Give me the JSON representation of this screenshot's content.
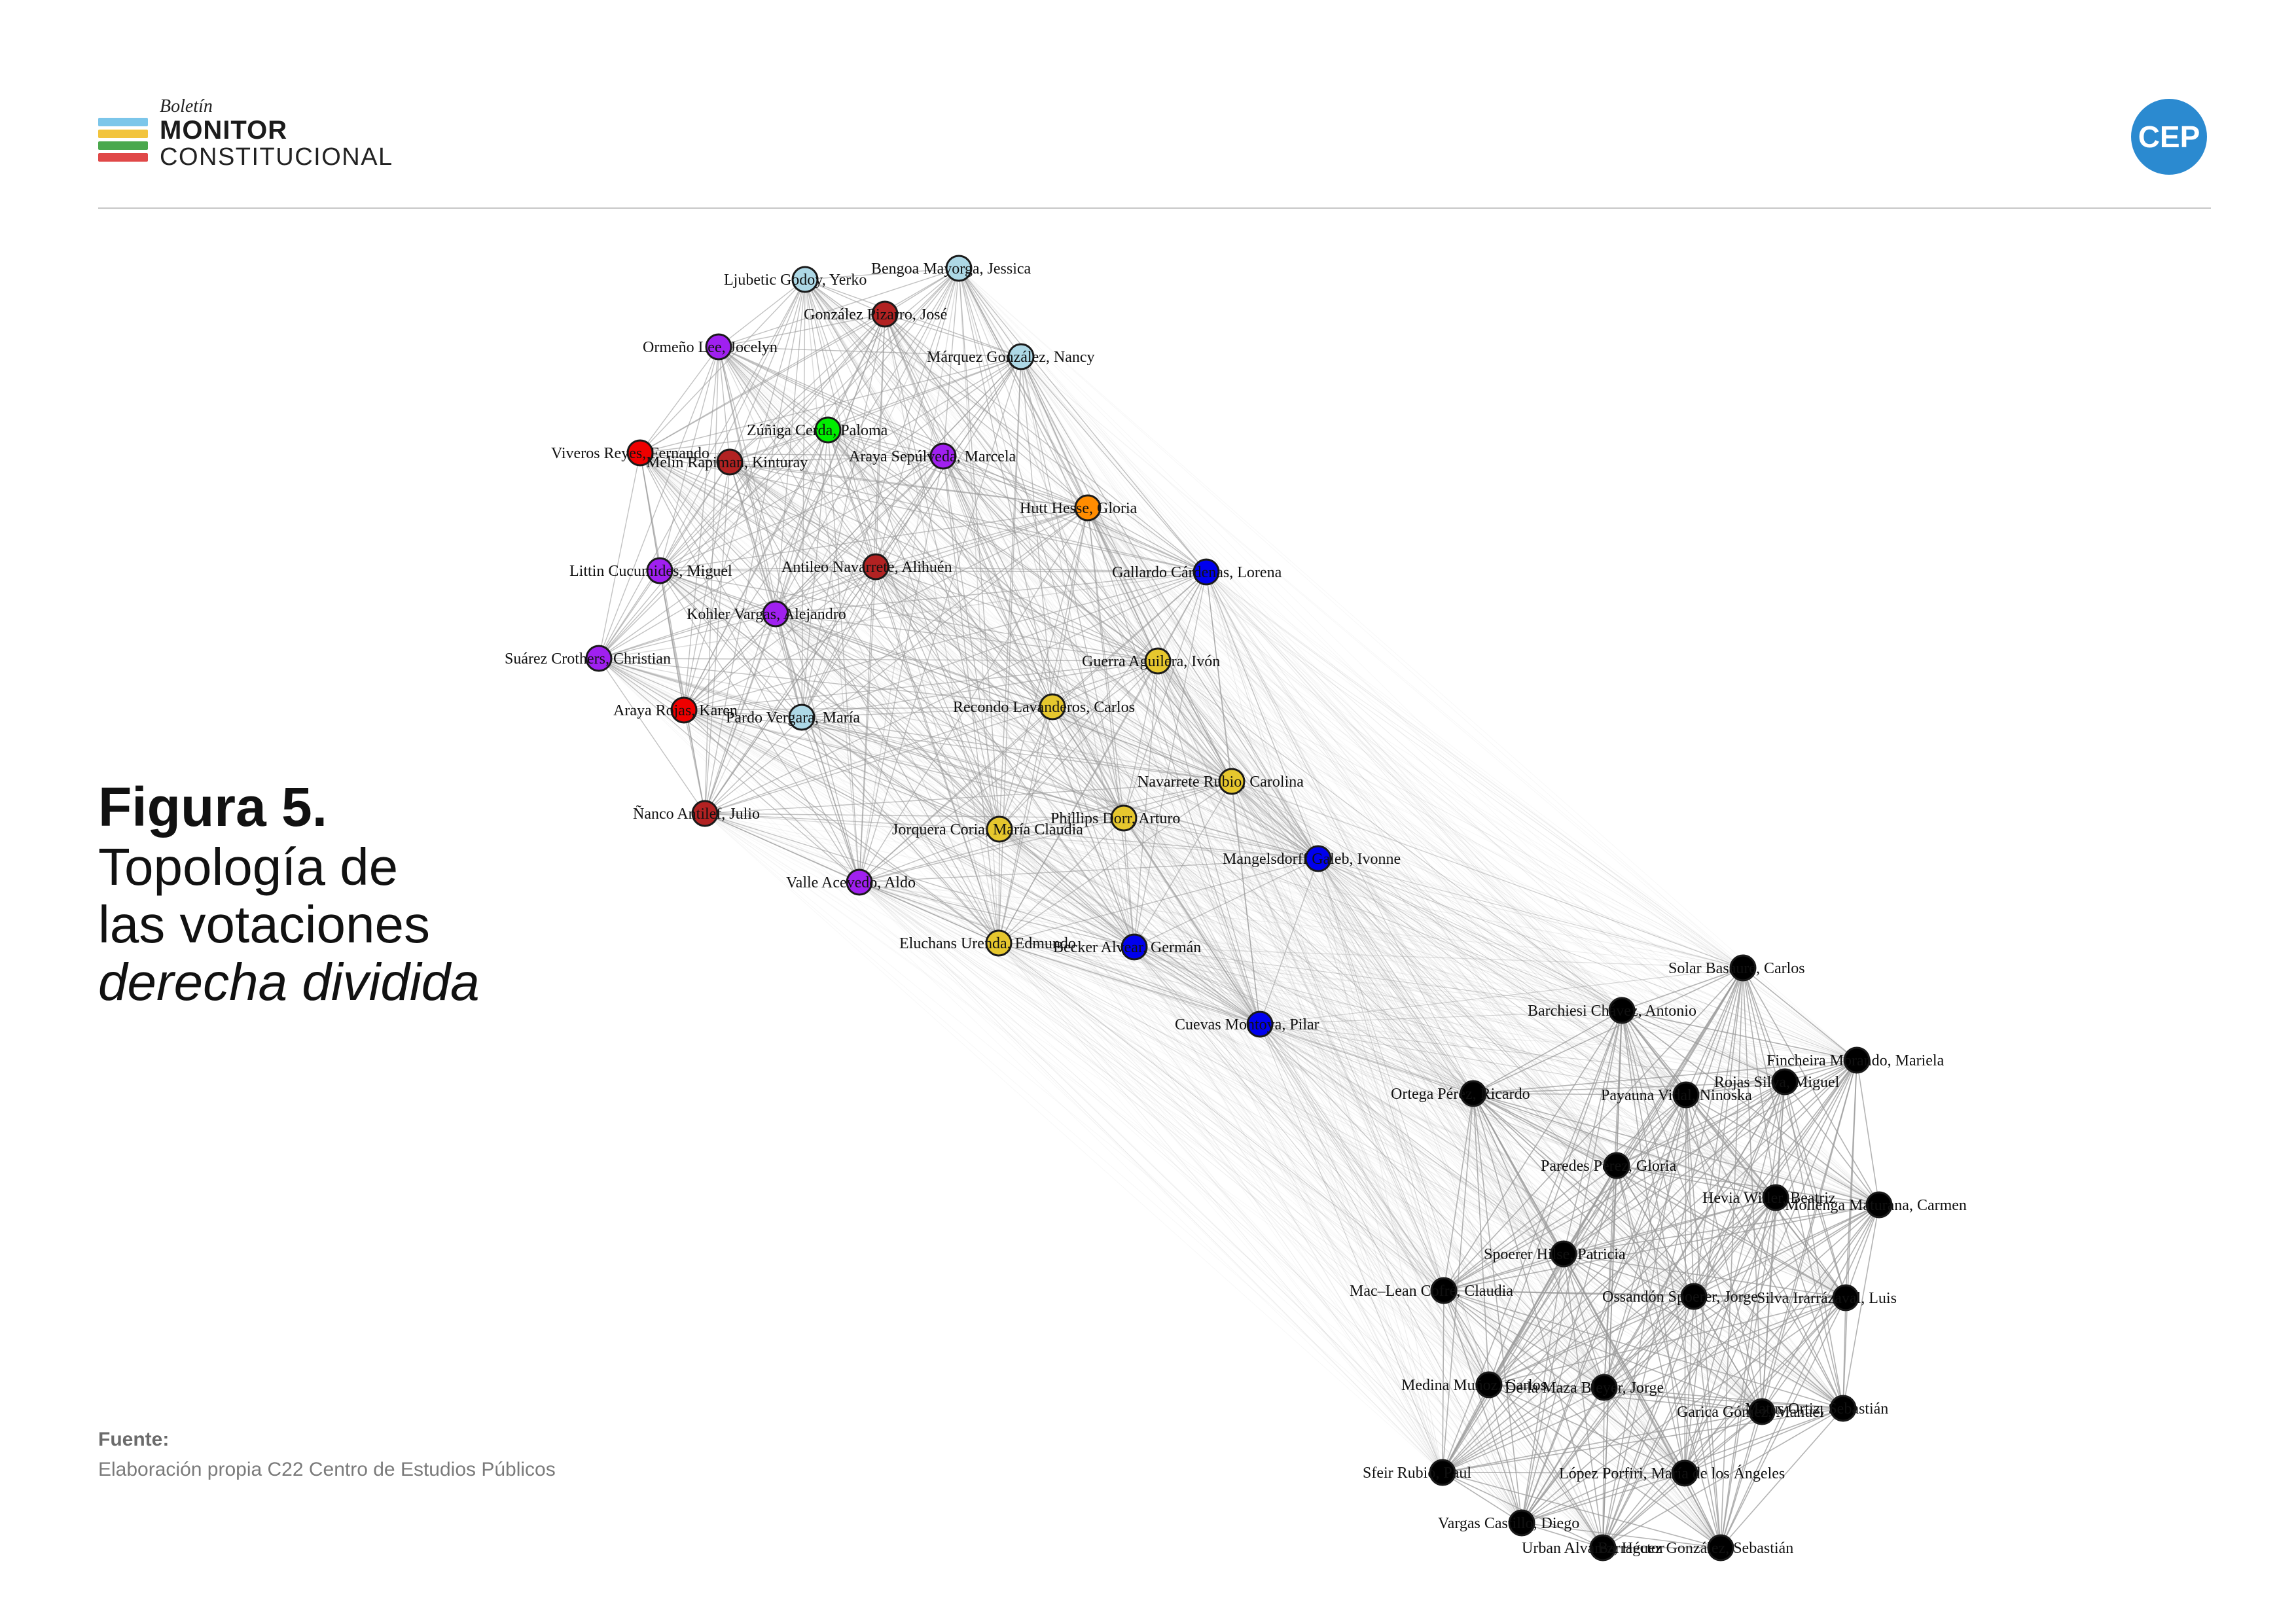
{
  "header": {
    "logo_boletin": "Boletín",
    "logo_monitor": "MONITOR",
    "logo_constitucional": "CONSTITUCIONAL",
    "logo_stripe_colors": [
      "#7cc6ea",
      "#f2c43d",
      "#4aa84d",
      "#e04848"
    ],
    "cep_badge": "CEP",
    "cep_color": "#2b8ad0"
  },
  "title": {
    "figure_number": "Figura 5.",
    "line1": "Topología de",
    "line2": "las votaciones",
    "line3_italic": "derecha dividida"
  },
  "source": {
    "label": "Fuente:",
    "text": "Elaboración propia C22 Centro de Estudios Públicos"
  },
  "chart_data": {
    "type": "network",
    "edge_color": "#9a9a9a",
    "node_colors": {
      "lightblue": "#add8e6",
      "darkred": "#b22222",
      "purple": "#a020f0",
      "green": "#00ee00",
      "red": "#ee0000",
      "orange": "#ff8c00",
      "blue": "#0000ee",
      "yellow": "#e6c72e",
      "black": "#000000"
    },
    "nodes": [
      {
        "label": "Bengoa Mayorga, Jessica",
        "color": "lightblue"
      },
      {
        "label": "Ljubetic Godoy, Yerko",
        "color": "lightblue"
      },
      {
        "label": "González Pizarro, José",
        "color": "darkred"
      },
      {
        "label": "Ormeño Lee, Jocelyn",
        "color": "purple"
      },
      {
        "label": "Márquez González, Nancy",
        "color": "lightblue"
      },
      {
        "label": "Zúñiga Cerda, Paloma",
        "color": "green"
      },
      {
        "label": "Viveros Reyes, Fernando",
        "color": "red"
      },
      {
        "label": "Melin Rapiman, Kinturay",
        "color": "darkred"
      },
      {
        "label": "Araya Sepúlveda, Marcela",
        "color": "purple"
      },
      {
        "label": "Hutt Hesse, Gloria",
        "color": "orange"
      },
      {
        "label": "Littin Cucumides, Miguel",
        "color": "purple"
      },
      {
        "label": "Antileo Navarrete, Alihuén",
        "color": "darkred"
      },
      {
        "label": "Gallardo Cárdenas, Lorena",
        "color": "blue"
      },
      {
        "label": "Kohler Vargas, Alejandro",
        "color": "purple"
      },
      {
        "label": "Suárez Crothers, Christian",
        "color": "purple"
      },
      {
        "label": "Guerra Aguilera, Ivón",
        "color": "yellow"
      },
      {
        "label": "Araya Rojas, Karen",
        "color": "red"
      },
      {
        "label": "Pardo Vergara, María",
        "color": "lightblue"
      },
      {
        "label": "Recondo Lavanderos, Carlos",
        "color": "yellow"
      },
      {
        "label": "Navarrete Rubio, Carolina",
        "color": "yellow"
      },
      {
        "label": "Ñanco Antilef, Julio",
        "color": "darkred"
      },
      {
        "label": "Jorquera Coria, María Claudia",
        "color": "yellow"
      },
      {
        "label": "Phillips Dorr, Arturo",
        "color": "yellow"
      },
      {
        "label": "Mangelsdorff Galeb, Ivonne",
        "color": "blue"
      },
      {
        "label": "Valle Acevedo, Aldo",
        "color": "purple"
      },
      {
        "label": "Eluchans Urenda, Edmundo",
        "color": "yellow"
      },
      {
        "label": "Becker Alvear, Germán",
        "color": "blue"
      },
      {
        "label": "Cuevas Montoya, Pilar",
        "color": "blue"
      },
      {
        "label": "Solar Basaure, Carlos",
        "color": "black"
      },
      {
        "label": "Barchiesi Chávez, Antonio",
        "color": "black"
      },
      {
        "label": "Fincheira Morando, Mariela",
        "color": "black"
      },
      {
        "label": "Rojas Silva, Miguel",
        "color": "black"
      },
      {
        "label": "Ortega Pérez, Ricardo",
        "color": "black"
      },
      {
        "label": "Payauna Vidal, Ninoska",
        "color": "black"
      },
      {
        "label": "Paredes Pérez, Gloria",
        "color": "black"
      },
      {
        "label": "Hevia Willer, Beatriz",
        "color": "black"
      },
      {
        "label": "Mollenga Maturana, Carmen",
        "color": "black"
      },
      {
        "label": "Spoerer Hilse, Patricia",
        "color": "black"
      },
      {
        "label": "Mac–Lean Cofré, Claudia",
        "color": "black"
      },
      {
        "label": "Ossandón Spoerer, Jorge",
        "color": "black"
      },
      {
        "label": "Silva Irarrázaval, Luis",
        "color": "black"
      },
      {
        "label": "Medina Muñoz, Carlos",
        "color": "black"
      },
      {
        "label": "De la Maza Bleyer, Jorge",
        "color": "black"
      },
      {
        "label": "Garica Gómez, Manuel",
        "color": "black"
      },
      {
        "label": "Matus Ortiz, Sebastián",
        "color": "black"
      },
      {
        "label": "Sfeir Rubio, Paul",
        "color": "black"
      },
      {
        "label": "López Porfiri, María de los Ángeles",
        "color": "black"
      },
      {
        "label": "Vargas Castillo, Diego",
        "color": "black"
      },
      {
        "label": "Urban Alvarez, Héctor",
        "color": "black"
      },
      {
        "label": "Barraguez González, Sebastián",
        "color": "black"
      }
    ]
  }
}
